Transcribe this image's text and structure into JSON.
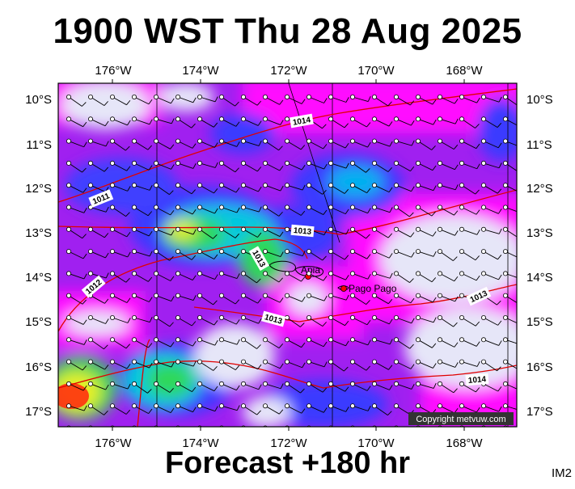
{
  "header": {
    "title": "1900 WST Thu 28 Aug 2025"
  },
  "footer": {
    "forecast": "Forecast +180 hr",
    "code": "IM2"
  },
  "map": {
    "lon_labels": [
      "176°W",
      "174°W",
      "172°W",
      "170°W",
      "168°W"
    ],
    "lat_labels": [
      "10°S",
      "11°S",
      "12°S",
      "13°S",
      "14°S",
      "15°S",
      "16°S",
      "17°S"
    ],
    "isobar_labels": [
      "1011",
      "1012",
      "1013",
      "1013",
      "1013",
      "1013",
      "1014",
      "1014"
    ],
    "places": {
      "apia": "Apia",
      "pago_pago": "Pago Pago"
    },
    "copyright": "Copyright metvuw.com",
    "colors": {
      "calm": "#e6e6f8",
      "blue": "#3a3aff",
      "purple": "#8a20ff",
      "magenta": "#ff10ff",
      "green": "#2ed85a",
      "yellow": "#e8f020",
      "red": "#ff3010",
      "isobar": "#e00000"
    }
  }
}
